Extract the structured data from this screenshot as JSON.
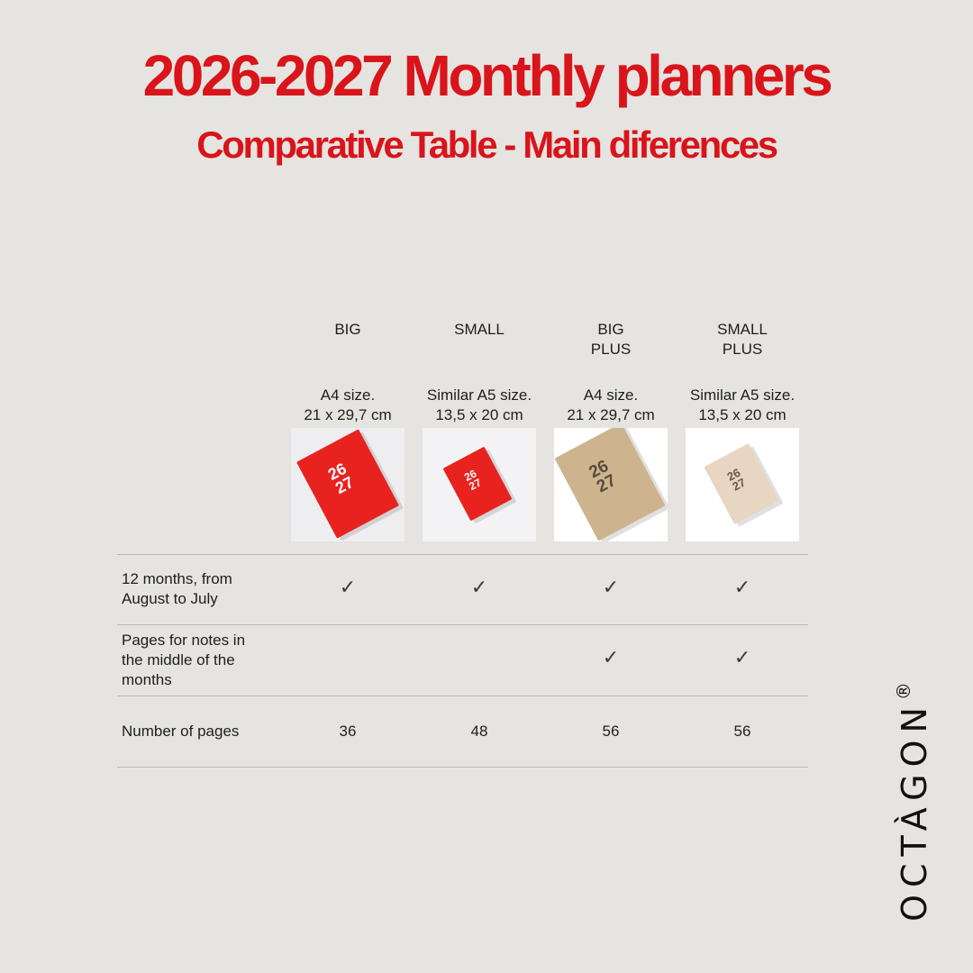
{
  "header": {
    "title": "2026-2027 Monthly planners",
    "subtitle": "Comparative Table - Main diferences"
  },
  "columns": [
    {
      "name": [
        "BIG"
      ],
      "size": [
        "A4 size.",
        "21 x 29,7 cm"
      ],
      "cover_color": "#e8231f",
      "cover_text": [
        "26",
        "27"
      ],
      "cover_text_color": "#ffffff",
      "thumb_bg": "#eeeef0"
    },
    {
      "name": [
        "SMALL"
      ],
      "size": [
        "Similar A5 size.",
        "13,5 x 20 cm"
      ],
      "cover_color": "#e8231f",
      "cover_text": [
        "26",
        "27"
      ],
      "cover_text_color": "#ffffff",
      "thumb_bg": "#f3f3f5"
    },
    {
      "name": [
        "BIG",
        "PLUS"
      ],
      "size": [
        "A4 size.",
        "21 x 29,7 cm"
      ],
      "cover_color": "#cdb48e",
      "cover_text": [
        "26",
        "27"
      ],
      "cover_text_color": "#5a4a3c",
      "thumb_bg": "#ffffff"
    },
    {
      "name": [
        "SMALL",
        "PLUS"
      ],
      "size": [
        "Similar A5 size.",
        "13,5 x 20 cm"
      ],
      "cover_color": "#e6d6c2",
      "cover_text": [
        "26",
        "27"
      ],
      "cover_text_color": "#6b5848",
      "thumb_bg": "#ffffff"
    }
  ],
  "rows": [
    {
      "label": [
        "12 months, from",
        "August to July"
      ],
      "cells": [
        "✓",
        "✓",
        "✓",
        "✓"
      ]
    },
    {
      "label": [
        "Pages for notes in",
        "the middle of the",
        "months"
      ],
      "cells": [
        "",
        "",
        "✓",
        "✓"
      ]
    },
    {
      "label": [
        "Number of pages"
      ],
      "cells": [
        "36",
        "48",
        "56",
        "56"
      ]
    }
  ],
  "brand": {
    "name": "OCTÀGON",
    "mark": "®"
  }
}
